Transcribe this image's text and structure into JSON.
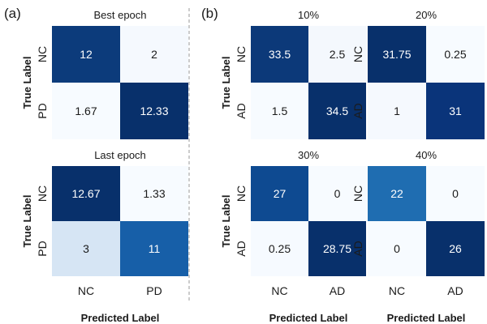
{
  "panel_labels": [
    "(a)",
    "(b)"
  ],
  "axis_text": {
    "ylabel": "True Label",
    "xlabel": "Predicted Label"
  },
  "colors": {
    "text_dark": "#1a1a1a",
    "text_light": "#ffffff",
    "divider": "#9a9a9a"
  },
  "chart_data": [
    {
      "type": "heatmap",
      "panel": "(a)",
      "title": "Best epoch",
      "rows": [
        "NC",
        "PD"
      ],
      "cols": [
        "NC",
        "PD"
      ],
      "values": [
        [
          12,
          2
        ],
        [
          1.67,
          12.33
        ]
      ],
      "value_labels": [
        [
          "12",
          "2"
        ],
        [
          "1.67",
          "12.33"
        ]
      ],
      "colors": [
        [
          "#0c3b7b",
          "#f5f9fe"
        ],
        [
          "#f7fbff",
          "#08306b"
        ]
      ],
      "show_xticks": false,
      "show_ylabel": true,
      "show_xlabel": false
    },
    {
      "type": "heatmap",
      "panel": "(a)",
      "title": "Last epoch",
      "rows": [
        "NC",
        "PD"
      ],
      "cols": [
        "NC",
        "PD"
      ],
      "values": [
        [
          12.67,
          1.33
        ],
        [
          3,
          11
        ]
      ],
      "value_labels": [
        [
          "12.67",
          "1.33"
        ],
        [
          "3",
          "11"
        ]
      ],
      "colors": [
        [
          "#08306b",
          "#f7fbff"
        ],
        [
          "#d6e5f4",
          "#175fa8"
        ]
      ],
      "show_xticks": true,
      "show_ylabel": true,
      "show_xlabel": true
    },
    {
      "type": "heatmap",
      "panel": "(b)",
      "title": "10%",
      "rows": [
        "NC",
        "AD"
      ],
      "cols": [
        "NC",
        "AD"
      ],
      "values": [
        [
          33.5,
          2.5
        ],
        [
          1.5,
          34.5
        ]
      ],
      "value_labels": [
        [
          "33.5",
          "2.5"
        ],
        [
          "1.5",
          "34.5"
        ]
      ],
      "colors": [
        [
          "#0c3979",
          "#f4f8fd"
        ],
        [
          "#f7fbff",
          "#08306b"
        ]
      ],
      "show_xticks": false,
      "show_ylabel": true,
      "show_xlabel": false
    },
    {
      "type": "heatmap",
      "panel": "(b)",
      "title": "20%",
      "rows": [
        "NC",
        "AD"
      ],
      "cols": [
        "NC",
        "AD"
      ],
      "values": [
        [
          31.75,
          0.25
        ],
        [
          1,
          31
        ]
      ],
      "value_labels": [
        [
          "31.75",
          "0.25"
        ],
        [
          "1",
          "31"
        ]
      ],
      "colors": [
        [
          "#08306b",
          "#f7fbff"
        ],
        [
          "#f5f9fe",
          "#0a347a"
        ]
      ],
      "show_xticks": false,
      "show_ylabel": false,
      "show_xlabel": false
    },
    {
      "type": "heatmap",
      "panel": "(b)",
      "title": "30%",
      "rows": [
        "NC",
        "AD"
      ],
      "cols": [
        "NC",
        "AD"
      ],
      "values": [
        [
          27,
          0
        ],
        [
          0.25,
          28.75
        ]
      ],
      "value_labels": [
        [
          "27",
          "0"
        ],
        [
          "0.25",
          "28.75"
        ]
      ],
      "colors": [
        [
          "#0e4a91",
          "#f7fbff"
        ],
        [
          "#f6faff",
          "#08306b"
        ]
      ],
      "show_xticks": true,
      "show_ylabel": true,
      "show_xlabel": true
    },
    {
      "type": "heatmap",
      "panel": "(b)",
      "title": "40%",
      "rows": [
        "NC",
        "AD"
      ],
      "cols": [
        "NC",
        "AD"
      ],
      "values": [
        [
          22,
          0
        ],
        [
          0,
          26
        ]
      ],
      "value_labels": [
        [
          "22",
          "0"
        ],
        [
          "0",
          "26"
        ]
      ],
      "colors": [
        [
          "#1f6db1",
          "#f7fbff"
        ],
        [
          "#f7fbff",
          "#08306b"
        ]
      ],
      "show_xticks": true,
      "show_ylabel": false,
      "show_xlabel": true
    }
  ]
}
